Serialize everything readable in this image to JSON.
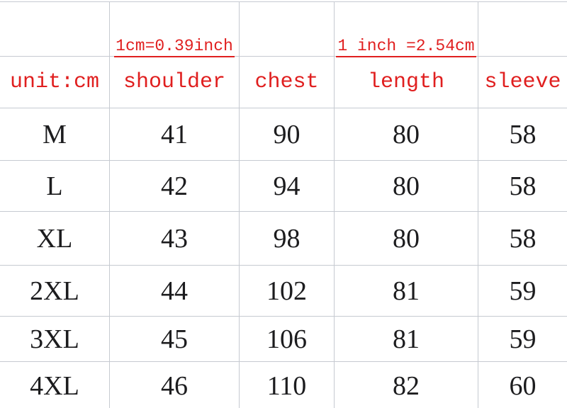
{
  "conversions": {
    "cm_to_inch": "1cm=0.39inch",
    "inch_to_cm": "1 inch =2.54cm"
  },
  "table": {
    "columns": [
      "unit:cm",
      "shoulder",
      "chest",
      "length",
      "sleeve"
    ],
    "rows": [
      {
        "size": "M",
        "shoulder": 41,
        "chest": 90,
        "length": 80,
        "sleeve": 58
      },
      {
        "size": "L",
        "shoulder": 42,
        "chest": 94,
        "length": 80,
        "sleeve": 58
      },
      {
        "size": "XL",
        "shoulder": 43,
        "chest": 98,
        "length": 80,
        "sleeve": 58
      },
      {
        "size": "2XL",
        "shoulder": 44,
        "chest": 102,
        "length": 81,
        "sleeve": 59
      },
      {
        "size": "3XL",
        "shoulder": 45,
        "chest": 106,
        "length": 81,
        "sleeve": 59
      },
      {
        "size": "4XL",
        "shoulder": 46,
        "chest": 110,
        "length": 82,
        "sleeve": 60
      }
    ]
  },
  "colors": {
    "accent_red": "#e01f1f",
    "text_black": "#1c1c1e",
    "grid_line": "#c6cad1"
  },
  "chart_data": {
    "type": "table",
    "columns": [
      "unit:cm",
      "shoulder",
      "chest",
      "length",
      "sleeve"
    ],
    "rows": [
      [
        "M",
        41,
        90,
        80,
        58
      ],
      [
        "L",
        42,
        94,
        80,
        58
      ],
      [
        "XL",
        43,
        98,
        80,
        58
      ],
      [
        "2XL",
        44,
        102,
        81,
        59
      ],
      [
        "3XL",
        45,
        106,
        81,
        59
      ],
      [
        "4XL",
        46,
        110,
        82,
        60
      ]
    ],
    "notes": [
      "1cm=0.39inch",
      "1 inch =2.54cm"
    ],
    "unit": "cm"
  }
}
